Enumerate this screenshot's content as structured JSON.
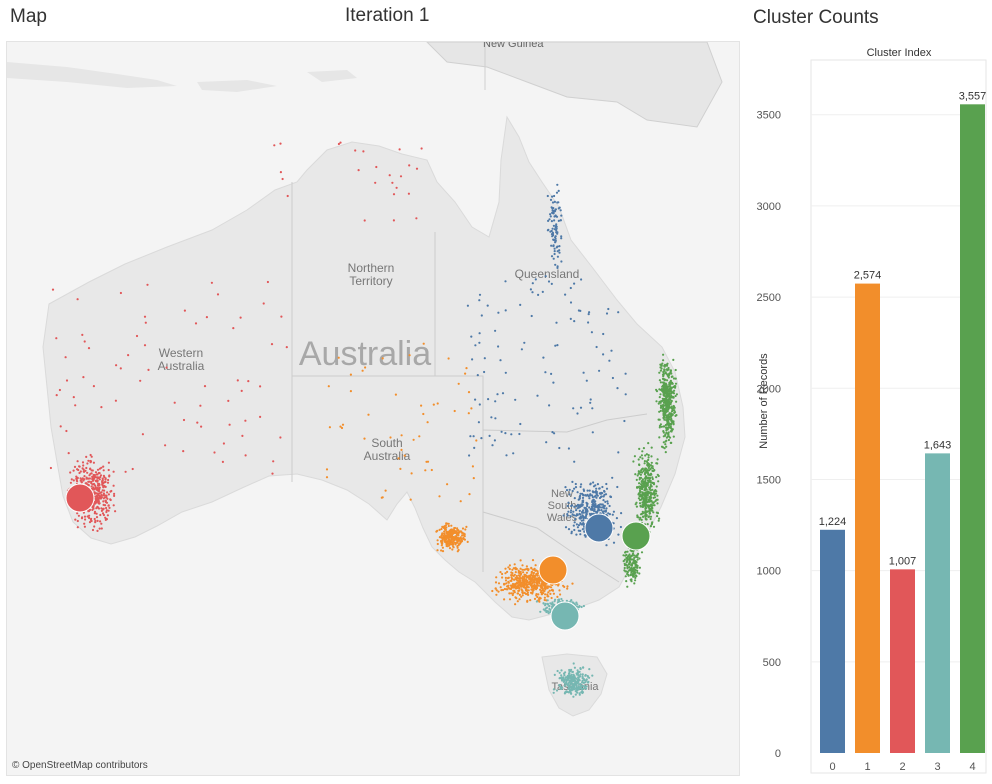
{
  "header": {
    "map_title": "Map",
    "iteration_title": "Iteration 1",
    "counts_title": "Cluster Counts"
  },
  "map": {
    "attribution": "© OpenStreetMap contributors",
    "labels": {
      "new_guinea": "New Guinea",
      "northern_territory": [
        "Northern",
        "Territory"
      ],
      "queensland": "Queensland",
      "western_australia": [
        "Western",
        "Australia"
      ],
      "australia": "Australia",
      "south_australia": [
        "South",
        "Australia"
      ],
      "new_south_wales": [
        "New",
        "South",
        "Wales"
      ],
      "tasmania": "Tasmania"
    },
    "clusters": [
      {
        "index": "0",
        "color": "#4e79a7",
        "region": "inland New South Wales and Queensland"
      },
      {
        "index": "1",
        "color": "#f28e2b",
        "region": "South Australia and Victoria"
      },
      {
        "index": "2",
        "color": "#e15759",
        "region": "Western Australia"
      },
      {
        "index": "3",
        "color": "#76b7b2",
        "region": "Victoria coast and Tasmania"
      },
      {
        "index": "4",
        "color": "#59a14f",
        "region": "New South Wales and Queensland east coast"
      }
    ]
  },
  "chart_data": {
    "type": "bar",
    "title": "Cluster Counts",
    "xlabel": "Cluster Index",
    "ylabel": "Number of Records",
    "categories": [
      "0",
      "1",
      "2",
      "3",
      "4"
    ],
    "values": [
      1224,
      2574,
      1007,
      1643,
      3557
    ],
    "value_labels": [
      "1,224",
      "2,574",
      "1,007",
      "1,643",
      "3,557"
    ],
    "colors": [
      "#4e79a7",
      "#f28e2b",
      "#e15759",
      "#76b7b2",
      "#59a14f"
    ],
    "ylim": [
      0,
      3800
    ],
    "yticks": [
      0,
      500,
      1000,
      1500,
      2000,
      2500,
      3000,
      3500
    ],
    "xaxis_position": "top",
    "grid": true
  }
}
